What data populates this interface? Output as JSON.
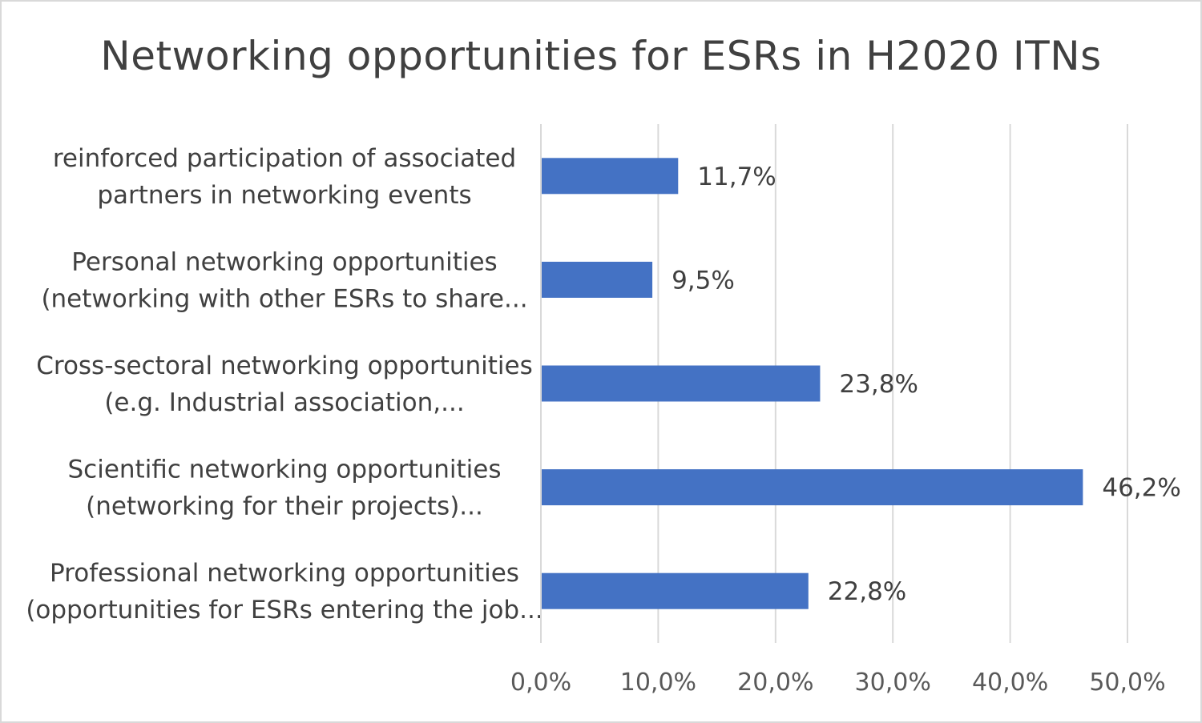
{
  "chart_data": {
    "type": "bar",
    "orientation": "horizontal",
    "title": "Networking opportunities for ESRs in H2020 ITNs",
    "xlabel": "",
    "ylabel": "",
    "xlim": [
      0,
      50
    ],
    "grid": true,
    "legend": "none",
    "bar_color": "#4472c4",
    "grid_color": "#d9d9d9",
    "ticks": [
      "0,0%",
      "10,0%",
      "20,0%",
      "30,0%",
      "40,0%",
      "50,0%"
    ],
    "categories": [
      [
        "reinforced participation of associated",
        "partners in networking events"
      ],
      [
        "Personal networking opportunities",
        "(networking with other ESRs to share..."
      ],
      [
        "Cross-sectoral networking opportunities",
        "(e.g.  Industrial association,..."
      ],
      [
        "Scientific networking opportunities",
        "(networking for their projects)..."
      ],
      [
        "Professional networking opportunities",
        "(opportunities for ESRs entering the job..."
      ]
    ],
    "values": [
      11.7,
      9.5,
      23.8,
      46.2,
      22.8
    ],
    "data_labels": [
      "11,7%",
      "9,5%",
      "23,8%",
      "46,2%",
      "22,8%"
    ]
  }
}
